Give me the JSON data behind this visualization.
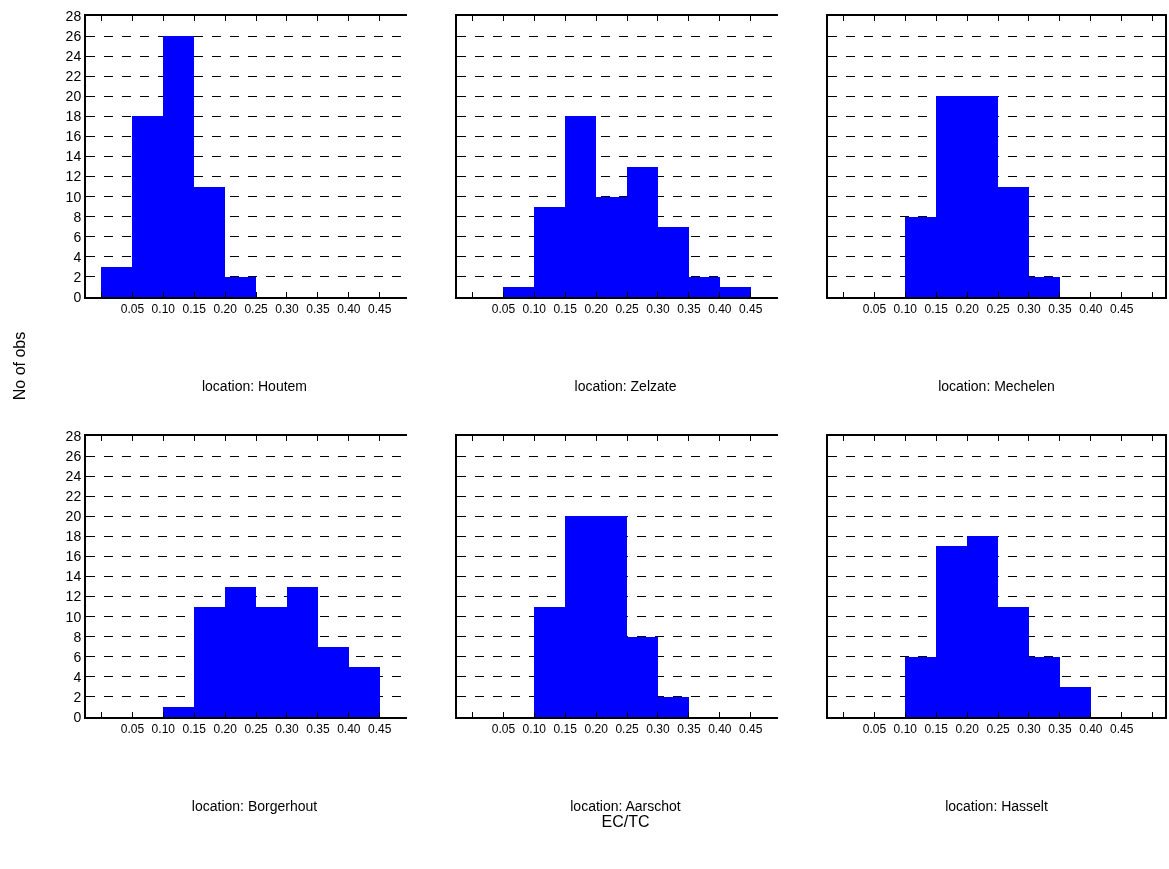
{
  "chart_data": [
    {
      "type": "histogram",
      "title": "location: Houtem",
      "ylabel": "No of obs",
      "bins": [
        0,
        0.05,
        0.1,
        0.15,
        0.2,
        0.25,
        0.3,
        0.35,
        0.4,
        0.45,
        0.5
      ],
      "values": [
        3,
        18,
        26,
        11,
        2,
        0,
        0,
        0,
        0,
        0
      ],
      "color": "#0000ff",
      "xlim": [
        -0.025,
        0.52
      ],
      "xticks": [
        {
          "value": 0,
          "label": null
        },
        {
          "value": 0.05,
          "label": "0.05"
        },
        {
          "value": 0.1,
          "label": "0.10"
        },
        {
          "value": 0.15,
          "label": "0.15"
        },
        {
          "value": 0.2,
          "label": "0.20"
        },
        {
          "value": 0.25,
          "label": "0.25"
        },
        {
          "value": 0.3,
          "label": "0.30"
        },
        {
          "value": 0.35,
          "label": "0.35"
        },
        {
          "value": 0.4,
          "label": "0.40"
        },
        {
          "value": 0.45,
          "label": "0.45"
        },
        {
          "value": 0.5,
          "label": null
        }
      ],
      "ylim": [
        0,
        28
      ],
      "yticks": [
        0,
        2,
        4,
        6,
        8,
        10,
        12,
        14,
        16,
        18,
        20,
        22,
        24,
        26,
        28
      ],
      "grid": "y",
      "line_style": "dashed"
    },
    {
      "type": "histogram",
      "title": "location: Zelzate",
      "bins": [
        0,
        0.05,
        0.1,
        0.15,
        0.2,
        0.25,
        0.3,
        0.35,
        0.4,
        0.45,
        0.5
      ],
      "values": [
        0,
        1,
        9,
        18,
        10,
        13,
        7,
        2,
        1,
        0
      ],
      "color": "#0000ff",
      "xlim": [
        -0.025,
        0.52
      ],
      "xticks": [
        {
          "value": 0,
          "label": null
        },
        {
          "value": 0.05,
          "label": "0.05"
        },
        {
          "value": 0.1,
          "label": "0.10"
        },
        {
          "value": 0.15,
          "label": "0.15"
        },
        {
          "value": 0.2,
          "label": "0.20"
        },
        {
          "value": 0.25,
          "label": "0.25"
        },
        {
          "value": 0.3,
          "label": "0.30"
        },
        {
          "value": 0.35,
          "label": "0.35"
        },
        {
          "value": 0.4,
          "label": "0.40"
        },
        {
          "value": 0.45,
          "label": "0.45"
        },
        {
          "value": 0.5,
          "label": null
        }
      ],
      "ylim": [
        0,
        28
      ],
      "yticks": [
        0,
        2,
        4,
        6,
        8,
        10,
        12,
        14,
        16,
        18,
        20,
        22,
        24,
        26,
        28
      ],
      "grid": "y",
      "line_style": "dashed",
      "tick_labels": "x"
    },
    {
      "type": "histogram",
      "title": "location: Mechelen",
      "bins": [
        0,
        0.05,
        0.1,
        0.15,
        0.2,
        0.25,
        0.3,
        0.35,
        0.4,
        0.45,
        0.5
      ],
      "values": [
        0,
        0,
        8,
        20,
        20,
        11,
        2,
        0,
        0,
        0
      ],
      "color": "#0000ff",
      "xlim": [
        -0.025,
        0.52
      ],
      "xticks": [
        {
          "value": 0,
          "label": null
        },
        {
          "value": 0.05,
          "label": "0.05"
        },
        {
          "value": 0.1,
          "label": "0.10"
        },
        {
          "value": 0.15,
          "label": "0.15"
        },
        {
          "value": 0.2,
          "label": "0.20"
        },
        {
          "value": 0.25,
          "label": "0.25"
        },
        {
          "value": 0.3,
          "label": "0.30"
        },
        {
          "value": 0.35,
          "label": "0.35"
        },
        {
          "value": 0.4,
          "label": "0.40"
        },
        {
          "value": 0.45,
          "label": "0.45"
        },
        {
          "value": 0.5,
          "label": null
        }
      ],
      "ylim": [
        0,
        28
      ],
      "yticks": [
        0,
        2,
        4,
        6,
        8,
        10,
        12,
        14,
        16,
        18,
        20,
        22,
        24,
        26,
        28
      ],
      "grid": "y",
      "line_style": "dashed",
      "tick_labels": "x"
    },
    {
      "type": "histogram",
      "title": "location: Borgerhout",
      "bins": [
        0,
        0.05,
        0.1,
        0.15,
        0.2,
        0.25,
        0.3,
        0.35,
        0.4,
        0.45,
        0.5
      ],
      "values": [
        0,
        0,
        1,
        11,
        13,
        11,
        13,
        7,
        5,
        0
      ],
      "color": "#0000ff",
      "xlim": [
        -0.025,
        0.52
      ],
      "xticks": [
        {
          "value": 0,
          "label": null
        },
        {
          "value": 0.05,
          "label": "0.05"
        },
        {
          "value": 0.1,
          "label": "0.10"
        },
        {
          "value": 0.15,
          "label": "0.15"
        },
        {
          "value": 0.2,
          "label": "0.20"
        },
        {
          "value": 0.25,
          "label": "0.25"
        },
        {
          "value": 0.3,
          "label": "0.30"
        },
        {
          "value": 0.35,
          "label": "0.35"
        },
        {
          "value": 0.4,
          "label": "0.40"
        },
        {
          "value": 0.45,
          "label": "0.45"
        },
        {
          "value": 0.5,
          "label": null
        }
      ],
      "ylim": [
        0,
        28
      ],
      "yticks": [
        0,
        2,
        4,
        6,
        8,
        10,
        12,
        14,
        16,
        18,
        20,
        22,
        24,
        26,
        28
      ],
      "grid": "y",
      "line_style": "dashed"
    },
    {
      "type": "histogram",
      "title": "location: Aarschot",
      "xlabel": "EC/TC",
      "bins": [
        0,
        0.05,
        0.1,
        0.15,
        0.2,
        0.25,
        0.3,
        0.35,
        0.4,
        0.45,
        0.5
      ],
      "values": [
        0,
        0,
        11,
        20,
        20,
        8,
        2,
        0,
        0,
        0
      ],
      "color": "#0000ff",
      "xlim": [
        -0.025,
        0.52
      ],
      "xticks": [
        {
          "value": 0,
          "label": null
        },
        {
          "value": 0.05,
          "label": "0.05"
        },
        {
          "value": 0.1,
          "label": "0.10"
        },
        {
          "value": 0.15,
          "label": "0.15"
        },
        {
          "value": 0.2,
          "label": "0.20"
        },
        {
          "value": 0.25,
          "label": "0.25"
        },
        {
          "value": 0.3,
          "label": "0.30"
        },
        {
          "value": 0.35,
          "label": "0.35"
        },
        {
          "value": 0.4,
          "label": "0.40"
        },
        {
          "value": 0.45,
          "label": "0.45"
        },
        {
          "value": 0.5,
          "label": null
        }
      ],
      "ylim": [
        0,
        28
      ],
      "yticks": [
        0,
        2,
        4,
        6,
        8,
        10,
        12,
        14,
        16,
        18,
        20,
        22,
        24,
        26,
        28
      ],
      "grid": "y",
      "line_style": "dashed",
      "tick_labels": "x"
    },
    {
      "type": "histogram",
      "title": "location: Hasselt",
      "bins": [
        0,
        0.05,
        0.1,
        0.15,
        0.2,
        0.25,
        0.3,
        0.35,
        0.4,
        0.45,
        0.5
      ],
      "values": [
        0,
        0,
        6,
        17,
        18,
        11,
        6,
        3,
        0,
        0
      ],
      "color": "#0000ff",
      "xlim": [
        -0.025,
        0.52
      ],
      "xticks": [
        {
          "value": 0,
          "label": null
        },
        {
          "value": 0.05,
          "label": "0.05"
        },
        {
          "value": 0.1,
          "label": "0.10"
        },
        {
          "value": 0.15,
          "label": "0.15"
        },
        {
          "value": 0.2,
          "label": "0.20"
        },
        {
          "value": 0.25,
          "label": "0.25"
        },
        {
          "value": 0.3,
          "label": "0.30"
        },
        {
          "value": 0.35,
          "label": "0.35"
        },
        {
          "value": 0.4,
          "label": "0.40"
        },
        {
          "value": 0.45,
          "label": "0.45"
        },
        {
          "value": 0.5,
          "label": null
        }
      ],
      "ylim": [
        0,
        28
      ],
      "yticks": [
        0,
        2,
        4,
        6,
        8,
        10,
        12,
        14,
        16,
        18,
        20,
        22,
        24,
        26,
        28
      ],
      "grid": "y",
      "line_style": "dashed",
      "tick_labels": "x"
    }
  ]
}
